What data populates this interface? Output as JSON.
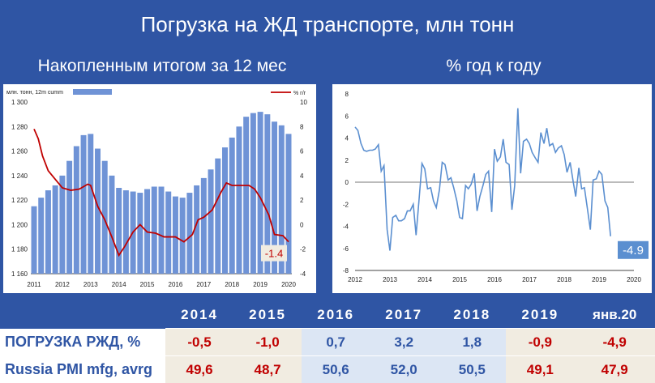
{
  "header": {
    "title": "Погрузка на ЖД транспорте, млн тонн",
    "left_subtitle": "Накопленным итогом за 12 мес",
    "right_subtitle": "% год к году"
  },
  "colors": {
    "background": "#2f55a4",
    "bar": "#6f93d6",
    "line": "#c00000",
    "yoy_line": "#5b8fd0",
    "neg": "#c00000",
    "pos": "#2f55a4",
    "neg_bg": "#f1ece1",
    "pos_bg": "#dce6f4"
  },
  "chart_data": [
    {
      "type": "bar",
      "title": "",
      "legend": {
        "bar_label": "млн. тонн, 12m cumm",
        "line_label": "% г/г"
      },
      "x_ticks": [
        "2011",
        "2012",
        "2013",
        "2014",
        "2015",
        "2016",
        "2017",
        "2018",
        "2019",
        "2020"
      ],
      "ylim": [
        1160,
        1300
      ],
      "y_ticks": [
        "1 160",
        "1 180",
        "1 200",
        "1 220",
        "1 240",
        "1 260",
        "1 280",
        "1 300"
      ],
      "y2lim": [
        -4,
        10
      ],
      "y2_ticks": [
        "-4",
        "-2",
        "0",
        "2",
        "4",
        "6",
        "8",
        "10"
      ],
      "x_range": [
        2011,
        2020
      ],
      "bars": [
        [
          2011.0,
          1215
        ],
        [
          2011.25,
          1222
        ],
        [
          2011.5,
          1228
        ],
        [
          2011.75,
          1232
        ],
        [
          2012.0,
          1240
        ],
        [
          2012.25,
          1252
        ],
        [
          2012.5,
          1264
        ],
        [
          2012.75,
          1273
        ],
        [
          2013.0,
          1274
        ],
        [
          2013.25,
          1262
        ],
        [
          2013.5,
          1252
        ],
        [
          2013.75,
          1240
        ],
        [
          2014.0,
          1230
        ],
        [
          2014.25,
          1228
        ],
        [
          2014.5,
          1227
        ],
        [
          2014.75,
          1226
        ],
        [
          2015.0,
          1229
        ],
        [
          2015.25,
          1231
        ],
        [
          2015.5,
          1231
        ],
        [
          2015.75,
          1227
        ],
        [
          2016.0,
          1223
        ],
        [
          2016.25,
          1222
        ],
        [
          2016.5,
          1226
        ],
        [
          2016.75,
          1232
        ],
        [
          2017.0,
          1238
        ],
        [
          2017.25,
          1245
        ],
        [
          2017.5,
          1254
        ],
        [
          2017.75,
          1263
        ],
        [
          2018.0,
          1271
        ],
        [
          2018.25,
          1280
        ],
        [
          2018.5,
          1288
        ],
        [
          2018.75,
          1291
        ],
        [
          2019.0,
          1292
        ],
        [
          2019.25,
          1290
        ],
        [
          2019.5,
          1284
        ],
        [
          2019.75,
          1281
        ],
        [
          2020.0,
          1274
        ]
      ],
      "line": [
        [
          2011.0,
          7.8
        ],
        [
          2011.15,
          7.0
        ],
        [
          2011.3,
          5.6
        ],
        [
          2011.5,
          4.4
        ],
        [
          2011.75,
          3.7
        ],
        [
          2012.0,
          3.0
        ],
        [
          2012.3,
          2.8
        ],
        [
          2012.6,
          2.9
        ],
        [
          2012.9,
          3.3
        ],
        [
          2013.0,
          3.2
        ],
        [
          2013.25,
          1.5
        ],
        [
          2013.5,
          0.4
        ],
        [
          2013.75,
          -1.0
        ],
        [
          2014.0,
          -2.5
        ],
        [
          2014.2,
          -1.8
        ],
        [
          2014.5,
          -0.6
        ],
        [
          2014.75,
          0.0
        ],
        [
          2015.0,
          -0.6
        ],
        [
          2015.3,
          -0.7
        ],
        [
          2015.6,
          -1.0
        ],
        [
          2015.8,
          -1.0
        ],
        [
          2016.0,
          -1.0
        ],
        [
          2016.3,
          -1.4
        ],
        [
          2016.6,
          -0.8
        ],
        [
          2016.8,
          0.4
        ],
        [
          2017.0,
          0.6
        ],
        [
          2017.3,
          1.2
        ],
        [
          2017.6,
          2.6
        ],
        [
          2017.8,
          3.4
        ],
        [
          2018.0,
          3.2
        ],
        [
          2018.3,
          3.2
        ],
        [
          2018.6,
          3.2
        ],
        [
          2018.8,
          2.9
        ],
        [
          2019.0,
          2.2
        ],
        [
          2019.3,
          0.8
        ],
        [
          2019.5,
          -0.8
        ],
        [
          2019.8,
          -0.9
        ],
        [
          2020.0,
          -1.4
        ]
      ],
      "last_value_label": "-1.4"
    },
    {
      "type": "line",
      "title": "",
      "ylim": [
        -8,
        8
      ],
      "y_ticks": [
        "8",
        "6",
        "4",
        "2",
        "0",
        "-2",
        "-4",
        "-6",
        "-8"
      ],
      "x_ticks": [
        "2012",
        "2013",
        "2014",
        "2015",
        "2016",
        "2017",
        "2018",
        "2019",
        "2020"
      ],
      "x_range": [
        2012,
        2020
      ],
      "points": [
        [
          2012.0,
          5.0
        ],
        [
          2012.08,
          4.7
        ],
        [
          2012.17,
          3.5
        ],
        [
          2012.25,
          2.9
        ],
        [
          2012.33,
          2.8
        ],
        [
          2012.42,
          2.9
        ],
        [
          2012.5,
          2.9
        ],
        [
          2012.58,
          3.0
        ],
        [
          2012.67,
          3.4
        ],
        [
          2012.75,
          1.0
        ],
        [
          2012.83,
          1.5
        ],
        [
          2012.92,
          -4.3
        ],
        [
          2013.0,
          -6.2
        ],
        [
          2013.08,
          -3.2
        ],
        [
          2013.17,
          -3.0
        ],
        [
          2013.25,
          -3.5
        ],
        [
          2013.33,
          -3.5
        ],
        [
          2013.42,
          -3.3
        ],
        [
          2013.5,
          -2.6
        ],
        [
          2013.58,
          -2.6
        ],
        [
          2013.67,
          -2.0
        ],
        [
          2013.75,
          -4.8
        ],
        [
          2013.83,
          -1.8
        ],
        [
          2013.92,
          1.7
        ],
        [
          2014.0,
          1.2
        ],
        [
          2014.08,
          -0.6
        ],
        [
          2014.17,
          -0.5
        ],
        [
          2014.25,
          -1.7
        ],
        [
          2014.33,
          -2.3
        ],
        [
          2014.42,
          -0.7
        ],
        [
          2014.5,
          1.8
        ],
        [
          2014.58,
          1.6
        ],
        [
          2014.67,
          0.2
        ],
        [
          2014.75,
          0.4
        ],
        [
          2014.83,
          -0.5
        ],
        [
          2014.92,
          -1.7
        ],
        [
          2015.0,
          -3.2
        ],
        [
          2015.08,
          -3.3
        ],
        [
          2015.17,
          -0.3
        ],
        [
          2015.25,
          -0.6
        ],
        [
          2015.33,
          -0.2
        ],
        [
          2015.42,
          0.8
        ],
        [
          2015.5,
          -2.6
        ],
        [
          2015.58,
          -1.3
        ],
        [
          2015.67,
          -0.3
        ],
        [
          2015.75,
          0.7
        ],
        [
          2015.83,
          1.0
        ],
        [
          2015.92,
          -2.7
        ],
        [
          2016.0,
          3.0
        ],
        [
          2016.08,
          1.9
        ],
        [
          2016.17,
          2.3
        ],
        [
          2016.25,
          3.9
        ],
        [
          2016.33,
          1.8
        ],
        [
          2016.42,
          1.6
        ],
        [
          2016.5,
          -2.5
        ],
        [
          2016.58,
          -0.3
        ],
        [
          2016.67,
          6.7
        ],
        [
          2016.75,
          0.8
        ],
        [
          2016.83,
          3.7
        ],
        [
          2016.92,
          3.9
        ],
        [
          2017.0,
          3.5
        ],
        [
          2017.08,
          2.7
        ],
        [
          2017.17,
          2.2
        ],
        [
          2017.25,
          1.8
        ],
        [
          2017.33,
          4.5
        ],
        [
          2017.42,
          3.5
        ],
        [
          2017.5,
          4.9
        ],
        [
          2017.58,
          3.3
        ],
        [
          2017.67,
          3.5
        ],
        [
          2017.75,
          2.7
        ],
        [
          2017.83,
          3.1
        ],
        [
          2017.92,
          3.3
        ],
        [
          2018.0,
          2.5
        ],
        [
          2018.08,
          0.9
        ],
        [
          2018.17,
          1.8
        ],
        [
          2018.25,
          0.2
        ],
        [
          2018.33,
          -1.3
        ],
        [
          2018.42,
          1.3
        ],
        [
          2018.5,
          -0.6
        ],
        [
          2018.58,
          -0.5
        ],
        [
          2018.67,
          -2.5
        ],
        [
          2018.75,
          -4.3
        ],
        [
          2018.83,
          0.2
        ],
        [
          2018.92,
          0.3
        ],
        [
          2019.0,
          1.0
        ],
        [
          2019.08,
          0.7
        ],
        [
          2019.17,
          -1.7
        ],
        [
          2019.25,
          -2.3
        ],
        [
          2019.33,
          -4.9
        ]
      ],
      "last_value_label": "-4.9"
    }
  ],
  "table": {
    "years": [
      "2014",
      "2015",
      "2016",
      "2017",
      "2018",
      "2019",
      "янв.20"
    ],
    "rows": [
      {
        "label": "ПОГРУЗКА РЖД, %",
        "values": [
          "-0,5",
          "-1,0",
          "0,7",
          "3,2",
          "1,8",
          "-0,9",
          "-4,9"
        ],
        "neg": [
          true,
          true,
          false,
          false,
          false,
          true,
          true
        ]
      },
      {
        "label": "Russia PMI mfg, avrg",
        "values": [
          "49,6",
          "48,7",
          "50,6",
          "52,0",
          "50,5",
          "49,1",
          "47,9"
        ],
        "neg": [
          true,
          true,
          false,
          false,
          false,
          true,
          true
        ]
      }
    ]
  }
}
